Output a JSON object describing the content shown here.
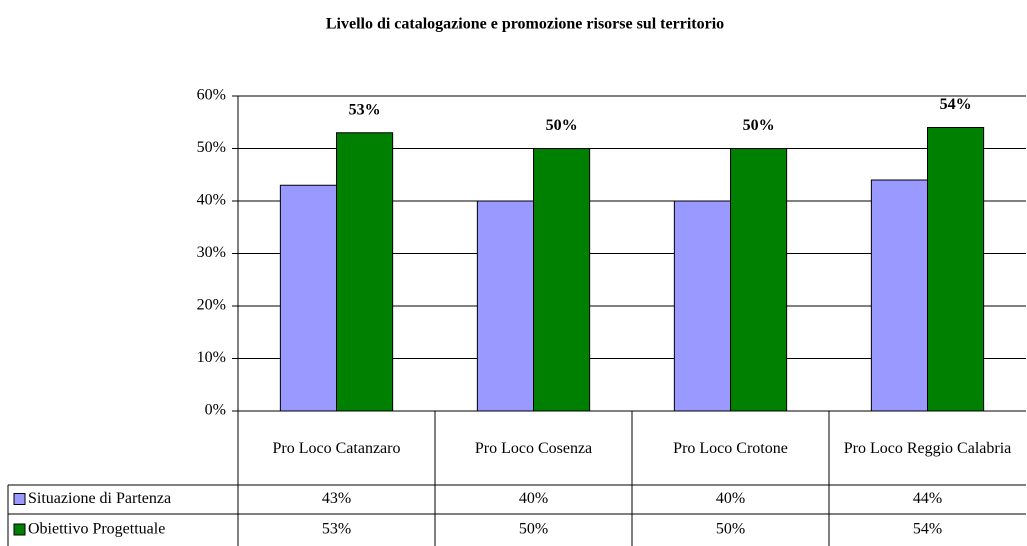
{
  "chart_data": {
    "type": "bar",
    "title": "Livello di catalogazione e promozione  risorse sul territorio",
    "categories": [
      "Pro Loco Catanzaro",
      "Pro Loco Cosenza",
      "Pro Loco Crotone",
      "Pro Loco Reggio Calabria"
    ],
    "series": [
      {
        "name": "Situazione di Partenza",
        "color": "#9999ff",
        "values": [
          43,
          40,
          40,
          44
        ],
        "value_labels": [
          "43%",
          "40%",
          "40%",
          "44%"
        ]
      },
      {
        "name": "Obiettivo Progettuale",
        "color": "#008000",
        "values": [
          53,
          50,
          50,
          54
        ],
        "value_labels": [
          "53%",
          "50%",
          "50%",
          "54%"
        ]
      }
    ],
    "ylim": [
      0,
      60
    ],
    "yticks": [
      {
        "value": 0,
        "label": "0%"
      },
      {
        "value": 10,
        "label": "10%"
      },
      {
        "value": 20,
        "label": "20%"
      },
      {
        "value": 30,
        "label": "30%"
      },
      {
        "value": 40,
        "label": "40%"
      },
      {
        "value": 50,
        "label": "50%"
      },
      {
        "value": 60,
        "label": "60%"
      }
    ],
    "grid": true
  }
}
